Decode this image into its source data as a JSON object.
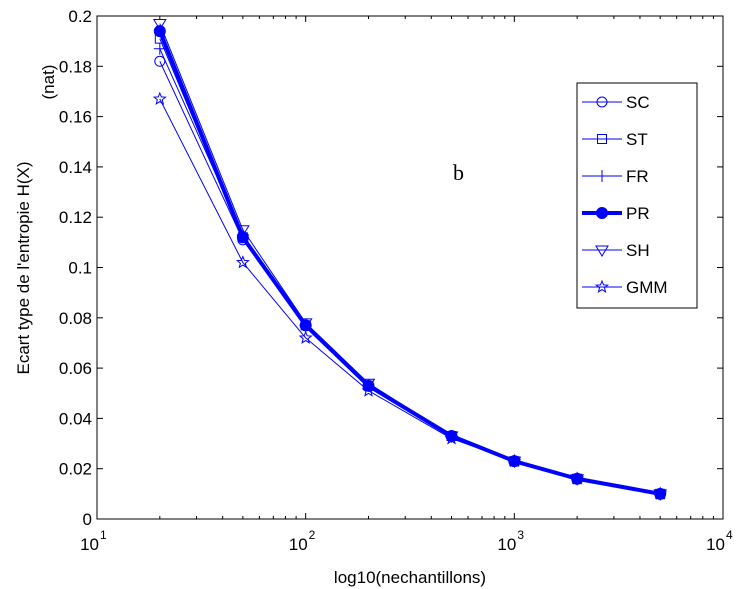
{
  "chart_data": {
    "type": "line",
    "title": "",
    "xlabel": "log10(nechantillons)",
    "ylabel": "Ecart type de l'entropie H(X)",
    "ylabel_unit": "(nat)",
    "xscale": "log",
    "xlim": [
      10,
      10000
    ],
    "ylim": [
      0,
      0.2
    ],
    "grid": false,
    "legend_position": "top-right",
    "annotation": "b",
    "line_color": "#0000ff",
    "x_ticks": [
      {
        "base": "10",
        "exp": "1",
        "value": 10
      },
      {
        "base": "10",
        "exp": "2",
        "value": 100
      },
      {
        "base": "10",
        "exp": "3",
        "value": 1000
      },
      {
        "base": "10",
        "exp": "4",
        "value": 10000
      }
    ],
    "y_ticks": [
      {
        "label": "0",
        "value": 0
      },
      {
        "label": "0.02",
        "value": 0.02
      },
      {
        "label": "0.04",
        "value": 0.04
      },
      {
        "label": "0.06",
        "value": 0.06
      },
      {
        "label": "0.08",
        "value": 0.08
      },
      {
        "label": "0.1",
        "value": 0.1
      },
      {
        "label": "0.12",
        "value": 0.12
      },
      {
        "label": "0.14",
        "value": 0.14
      },
      {
        "label": "0.16",
        "value": 0.16
      },
      {
        "label": "0.18",
        "value": 0.18
      },
      {
        "label": "0.2",
        "value": 0.2
      }
    ],
    "x": [
      20,
      50,
      100,
      200,
      500,
      1000,
      2000,
      5000
    ],
    "series": [
      {
        "name": "SC",
        "marker": "circle",
        "bold": false,
        "values": [
          0.182,
          0.111,
          0.077,
          0.053,
          0.033,
          0.023,
          0.016,
          0.01
        ]
      },
      {
        "name": "ST",
        "marker": "square",
        "bold": false,
        "values": [
          0.191,
          0.112,
          0.077,
          0.053,
          0.033,
          0.023,
          0.016,
          0.01
        ]
      },
      {
        "name": "FR",
        "marker": "plus",
        "bold": false,
        "values": [
          0.187,
          0.113,
          0.077,
          0.053,
          0.033,
          0.023,
          0.016,
          0.01
        ]
      },
      {
        "name": "PR",
        "marker": "filled-circle",
        "bold": true,
        "values": [
          0.194,
          0.112,
          0.077,
          0.053,
          0.033,
          0.023,
          0.016,
          0.01
        ]
      },
      {
        "name": "SH",
        "marker": "triangle-down",
        "bold": false,
        "values": [
          0.197,
          0.115,
          0.078,
          0.054,
          0.033,
          0.023,
          0.016,
          0.01
        ]
      },
      {
        "name": "GMM",
        "marker": "star",
        "bold": false,
        "values": [
          0.167,
          0.102,
          0.072,
          0.051,
          0.032,
          0.023,
          0.016,
          0.01
        ]
      }
    ]
  }
}
